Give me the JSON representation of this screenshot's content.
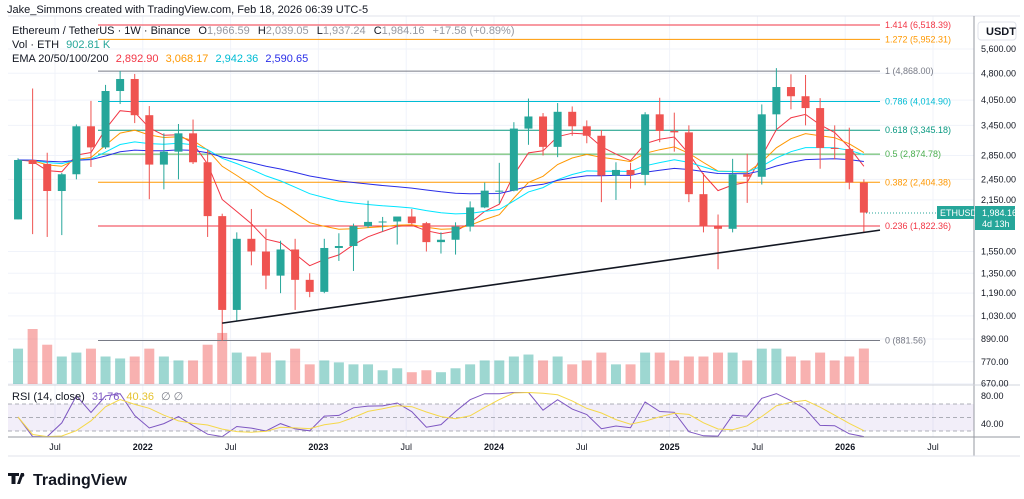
{
  "attribution": "Jake_Simmons created with TradingView.com, Feb 18, 2026 06:39 UTC-5",
  "legend": {
    "symbol": "Ethereum / TetherUS · 1W · Binance",
    "open_label": "O",
    "open": "1,966.59",
    "high_label": "H",
    "high": "2,039.05",
    "low_label": "L",
    "low": "1,937.24",
    "close_label": "C",
    "close": "1,984.16",
    "change": "+17.58 (+0.89%)",
    "vol_label": "Vol · ETH",
    "vol_value": "902.81 K",
    "ema_label": "EMA 20/50/100/200",
    "ema_values": [
      "2,892.90",
      "3,068.17",
      "2,942.36",
      "2,590.65"
    ],
    "ema_colors": [
      "#f23645",
      "#ff9800",
      "#00e5ff",
      "#2a2ee8"
    ],
    "rsi_label": "RSI (14, close)",
    "rsi_value": "31.76",
    "rsi_ma_value": "40.36",
    "rsi_colors": [
      "#7e57c2",
      "#f5d84a"
    ]
  },
  "price_axis": {
    "currency": "USDT",
    "ticks": [
      "5,600.00",
      "4,800.00",
      "4,050.00",
      "3,450.00",
      "2,850.00",
      "2,450.00",
      "2,150.00",
      "1,550.00",
      "1,350.00",
      "1,190.00",
      "1,030.00",
      "890.00",
      "770.00",
      "670.00"
    ],
    "tick_values": [
      5600,
      4800,
      4050,
      3450,
      2850,
      2450,
      2150,
      1550,
      1350,
      1190,
      1030,
      890,
      770,
      670
    ],
    "scale": "log",
    "rsi_ticks": [
      "80.00",
      "40.00"
    ]
  },
  "current_price": {
    "symbol": "ETHUSDT",
    "price": "1,984.16",
    "countdown": "4d 13h",
    "color": "#26a69a"
  },
  "time_axis": [
    "Jul",
    "2022",
    "Jul",
    "2023",
    "Jul",
    "2024",
    "Jul",
    "2025",
    "Jul",
    "2026",
    "Jul"
  ],
  "fib_levels": [
    {
      "label": "1.414 (6,518.39)",
      "price": 6518.39,
      "color": "#f23645"
    },
    {
      "label": "1.272 (5,952.31)",
      "price": 5952.31,
      "color": "#ff9800"
    },
    {
      "label": "1 (4,868.00)",
      "price": 4868.0,
      "color": "#787b86"
    },
    {
      "label": "0.786 (4,014.90)",
      "price": 4014.9,
      "color": "#00bcd4"
    },
    {
      "label": "0.618 (3,345.18)",
      "price": 3345.18,
      "color": "#089981"
    },
    {
      "label": "0.5 (2,874.78)",
      "price": 2874.78,
      "color": "#4caf50"
    },
    {
      "label": "0.382 (2,404.38)",
      "price": 2404.38,
      "color": "#ff9800"
    },
    {
      "label": "0.236 (1,822.36)",
      "price": 1822.36,
      "color": "#f23645"
    },
    {
      "label": "0 (881.56)",
      "price": 881.56,
      "color": "#787b86"
    }
  ],
  "logo": "TradingView",
  "chart_data": {
    "type": "candlestick",
    "title": "Ethereum / TetherUS · 1W · Binance",
    "yscale": "log",
    "ylim": [
      640,
      6800
    ],
    "colors": {
      "up": "#26a69a",
      "down": "#ef5350"
    },
    "trendline": [
      {
        "date": "2022-06",
        "price": 984
      },
      {
        "date": "2026-02",
        "price": 1775
      }
    ],
    "candles": {
      "dates": [
        "2021-04",
        "2021-05",
        "2021-06",
        "2021-07",
        "2021-08",
        "2021-09",
        "2021-10",
        "2021-11",
        "2021-12",
        "2022-01",
        "2022-02",
        "2022-03",
        "2022-04",
        "2022-05",
        "2022-06",
        "2022-07",
        "2022-08",
        "2022-09",
        "2022-10",
        "2022-11",
        "2022-12",
        "2023-01",
        "2023-02",
        "2023-03",
        "2023-04",
        "2023-05",
        "2023-06",
        "2023-07",
        "2023-08",
        "2023-09",
        "2023-10",
        "2023-11",
        "2023-12",
        "2024-01",
        "2024-02",
        "2024-03",
        "2024-04",
        "2024-05",
        "2024-06",
        "2024-07",
        "2024-08",
        "2024-09",
        "2024-10",
        "2024-11",
        "2024-12",
        "2025-01",
        "2025-02",
        "2025-03",
        "2025-04",
        "2025-05",
        "2025-06",
        "2025-07",
        "2025-08",
        "2025-09",
        "2025-10",
        "2025-11",
        "2025-12",
        "2026-01",
        "2026-02"
      ],
      "ohlc": [
        [
          1900,
          2800,
          1900,
          2770
        ],
        [
          2770,
          4360,
          1730,
          2700
        ],
        [
          2700,
          2900,
          1700,
          2275
        ],
        [
          2275,
          2550,
          1720,
          2530
        ],
        [
          2530,
          3470,
          2450,
          3430
        ],
        [
          3430,
          4030,
          2650,
          3000
        ],
        [
          3000,
          4460,
          2970,
          4290
        ],
        [
          4290,
          4870,
          3950,
          4630
        ],
        [
          4630,
          4780,
          3500,
          3680
        ],
        [
          3680,
          3900,
          2160,
          2690
        ],
        [
          2690,
          3280,
          2300,
          2920
        ],
        [
          2920,
          3480,
          2450,
          3280
        ],
        [
          3280,
          3580,
          2700,
          2730
        ],
        [
          2730,
          2960,
          1700,
          1940
        ],
        [
          1940,
          1970,
          880,
          1070
        ],
        [
          1070,
          1750,
          1000,
          1680
        ],
        [
          1680,
          2030,
          1420,
          1550
        ],
        [
          1550,
          1790,
          1220,
          1330
        ],
        [
          1330,
          1660,
          1190,
          1570
        ],
        [
          1570,
          1680,
          1070,
          1295
        ],
        [
          1295,
          1350,
          1160,
          1200
        ],
        [
          1200,
          1680,
          1190,
          1585
        ],
        [
          1585,
          1740,
          1460,
          1605
        ],
        [
          1605,
          1850,
          1370,
          1820
        ],
        [
          1820,
          2140,
          1800,
          1870
        ],
        [
          1870,
          1930,
          1760,
          1875
        ],
        [
          1875,
          1930,
          1620,
          1935
        ],
        [
          1935,
          2030,
          1840,
          1855
        ],
        [
          1855,
          1870,
          1550,
          1645
        ],
        [
          1645,
          1750,
          1530,
          1670
        ],
        [
          1670,
          1865,
          1520,
          1815
        ],
        [
          1815,
          2130,
          1760,
          2050
        ],
        [
          2050,
          2400,
          2040,
          2280
        ],
        [
          2280,
          2720,
          2100,
          2280
        ],
        [
          2280,
          3520,
          2270,
          3380
        ],
        [
          3380,
          4090,
          3050,
          3650
        ],
        [
          3650,
          3730,
          2850,
          3010
        ],
        [
          3010,
          3975,
          2820,
          3760
        ],
        [
          3760,
          3890,
          3230,
          3430
        ],
        [
          3430,
          3560,
          3080,
          3230
        ],
        [
          3230,
          3350,
          2120,
          2510
        ],
        [
          2510,
          2730,
          2150,
          2600
        ],
        [
          2600,
          2720,
          2310,
          2520
        ],
        [
          2520,
          3750,
          2360,
          3700
        ],
        [
          3700,
          4110,
          3100,
          3330
        ],
        [
          3330,
          3740,
          2920,
          3300
        ],
        [
          3300,
          3450,
          2120,
          2230
        ],
        [
          2230,
          2550,
          1750,
          1820
        ],
        [
          1820,
          1960,
          1385,
          1790
        ],
        [
          1790,
          2790,
          1750,
          2530
        ],
        [
          2530,
          2880,
          2110,
          2490
        ],
        [
          2490,
          3940,
          2370,
          3700
        ],
        [
          3700,
          4960,
          3350,
          4400
        ],
        [
          4400,
          4770,
          3820,
          4150
        ],
        [
          4150,
          4750,
          3450,
          3850
        ],
        [
          3850,
          4100,
          2620,
          2990
        ],
        [
          2990,
          3450,
          2780,
          2970
        ],
        [
          2970,
          3400,
          2300,
          2400
        ],
        [
          2400,
          2450,
          1750,
          1984
        ]
      ],
      "volume_k": [
        900,
        1400,
        1000,
        700,
        800,
        900,
        700,
        650,
        700,
        900,
        700,
        600,
        600,
        1000,
        1300,
        800,
        700,
        800,
        600,
        900,
        500,
        600,
        550,
        500,
        500,
        350,
        400,
        300,
        350,
        300,
        400,
        500,
        600,
        600,
        700,
        750,
        600,
        700,
        500,
        600,
        800,
        500,
        500,
        800,
        800,
        600,
        700,
        700,
        800,
        800,
        600,
        900,
        900,
        700,
        600,
        800,
        600,
        700,
        902.81
      ]
    }
  }
}
